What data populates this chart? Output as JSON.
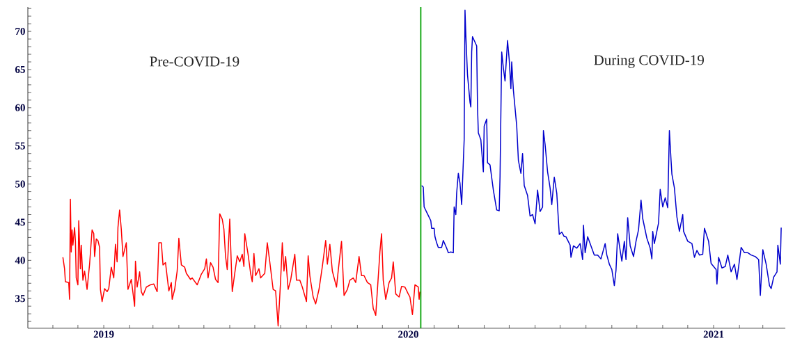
{
  "chart_data": {
    "type": "line",
    "xlim": [
      "2018-10-02",
      "2021-03-28"
    ],
    "ylim": [
      31.1,
      73.2
    ],
    "xticks": [
      {
        "value": "2018-11",
        "label": null
      },
      {
        "value": "2018-12",
        "label": null
      },
      {
        "value": "2019",
        "label": "2019"
      },
      {
        "value": "2019-02",
        "label": null
      },
      {
        "value": "2019-03",
        "label": null
      },
      {
        "value": "2019-04",
        "label": null
      },
      {
        "value": "2019-05",
        "label": null
      },
      {
        "value": "2019-06",
        "label": null
      },
      {
        "value": "2019-07",
        "label": null
      },
      {
        "value": "2019-08",
        "label": null
      },
      {
        "value": "2019-09",
        "label": null
      },
      {
        "value": "2019-10",
        "label": null
      },
      {
        "value": "2019-11",
        "label": null
      },
      {
        "value": "2019-12",
        "label": null
      },
      {
        "value": "2020",
        "label": "2020"
      },
      {
        "value": "2020-02",
        "label": null
      },
      {
        "value": "2020-03",
        "label": null
      },
      {
        "value": "2020-04",
        "label": null
      },
      {
        "value": "2020-05",
        "label": null
      },
      {
        "value": "2020-06",
        "label": null
      },
      {
        "value": "2020-07",
        "label": null
      },
      {
        "value": "2020-08",
        "label": null
      },
      {
        "value": "2020-09",
        "label": null
      },
      {
        "value": "2020-10",
        "label": null
      },
      {
        "value": "2020-11",
        "label": null
      },
      {
        "value": "2020-12",
        "label": null
      },
      {
        "value": "2021",
        "label": "2021"
      },
      {
        "value": "2021-02",
        "label": null
      },
      {
        "value": "2021-03",
        "label": null
      }
    ],
    "yticks": [
      {
        "value": 32,
        "label": null
      },
      {
        "value": 33,
        "label": null
      },
      {
        "value": 34,
        "label": null
      },
      35,
      {
        "value": 36,
        "label": null
      },
      {
        "value": 37,
        "label": null
      },
      {
        "value": 38,
        "label": null
      },
      {
        "value": 39,
        "label": null
      },
      40,
      {
        "value": 41,
        "label": null
      },
      {
        "value": 42,
        "label": null
      },
      {
        "value": 43,
        "label": null
      },
      {
        "value": 44,
        "label": null
      },
      45,
      {
        "value": 46,
        "label": null
      },
      {
        "value": 47,
        "label": null
      },
      {
        "value": 48,
        "label": null
      },
      {
        "value": 49,
        "label": null
      },
      50,
      {
        "value": 51,
        "label": null
      },
      {
        "value": 52,
        "label": null
      },
      {
        "value": 53,
        "label": null
      },
      {
        "value": 54,
        "label": null
      },
      55,
      {
        "value": 56,
        "label": null
      },
      {
        "value": 57,
        "label": null
      },
      {
        "value": 58,
        "label": null
      },
      {
        "value": 59,
        "label": null
      },
      60,
      {
        "value": 61,
        "label": null
      },
      {
        "value": 62,
        "label": null
      },
      {
        "value": 63,
        "label": null
      },
      {
        "value": 64,
        "label": null
      },
      65,
      {
        "value": 66,
        "label": null
      },
      {
        "value": 67,
        "label": null
      },
      {
        "value": 68,
        "label": null
      },
      {
        "value": 69,
        "label": null
      },
      70,
      {
        "value": 71,
        "label": null
      },
      {
        "value": 72,
        "label": null
      },
      {
        "value": 73,
        "label": null
      }
    ],
    "annotations": [
      "Pre-COVID-19",
      "During COVID-19"
    ],
    "ref_lines": [
      {
        "axis": "x",
        "value": "2020-01-16",
        "color": "#00a000"
      }
    ],
    "series": [
      {
        "color": "#ff0000",
        "x": [
          "2018-11-13",
          "2018-11-15",
          "2018-11-16",
          "2018-11-20",
          "2018-11-21",
          "2018-11-22",
          "2018-11-23",
          "2018-11-24",
          "2018-11-25",
          "2018-11-27",
          "2018-11-28",
          "2018-11-29",
          "2018-12-01",
          "2018-12-02",
          "2018-12-04",
          "2018-12-05",
          "2018-12-07",
          "2018-12-09",
          "2018-12-12",
          "2018-12-15",
          "2018-12-18",
          "2018-12-20",
          "2018-12-21",
          "2018-12-23",
          "2018-12-25",
          "2018-12-27",
          "2018-12-28",
          "2018-12-30",
          "2019-01-02",
          "2019-01-05",
          "2019-01-07",
          "2019-01-10",
          "2019-01-13",
          "2019-01-15",
          "2019-01-17",
          "2019-01-18",
          "2019-01-20",
          "2019-01-22",
          "2019-01-24",
          "2019-01-28",
          "2019-01-30",
          "2019-02-03",
          "2019-02-07",
          "2019-02-08",
          "2019-02-10",
          "2019-02-13",
          "2019-02-15",
          "2019-02-17",
          "2019-02-21",
          "2019-02-26",
          "2019-03-02",
          "2019-03-06",
          "2019-03-08",
          "2019-03-11",
          "2019-03-13",
          "2019-03-16",
          "2019-03-20",
          "2019-03-23",
          "2019-03-24",
          "2019-03-27",
          "2019-03-30",
          "2019-04-01",
          "2019-04-04",
          "2019-04-08",
          "2019-04-10",
          "2019-04-15",
          "2019-04-17",
          "2019-04-23",
          "2019-04-28",
          "2019-05-02",
          "2019-05-04",
          "2019-05-06",
          "2019-05-09",
          "2019-05-12",
          "2019-05-15",
          "2019-05-18",
          "2019-05-20",
          "2019-05-23",
          "2019-05-25",
          "2019-05-27",
          "2019-05-29",
          "2019-06-01",
          "2019-06-04",
          "2019-06-07",
          "2019-06-10",
          "2019-06-13",
          "2019-06-16",
          "2019-06-18",
          "2019-06-19",
          "2019-06-23",
          "2019-06-26",
          "2019-06-28",
          "2019-06-30",
          "2019-07-02",
          "2019-07-06",
          "2019-07-08",
          "2019-07-13",
          "2019-07-16",
          "2019-07-19",
          "2019-07-23",
          "2019-07-26",
          "2019-07-29",
          "2019-08-01",
          "2019-08-03",
          "2019-08-05",
          "2019-08-07",
          "2019-08-10",
          "2019-08-13",
          "2019-08-18",
          "2019-08-20",
          "2019-08-24",
          "2019-08-27",
          "2019-09-01",
          "2019-09-03",
          "2019-09-05",
          "2019-09-09",
          "2019-09-12",
          "2019-09-16",
          "2019-09-20",
          "2019-09-24",
          "2019-09-26",
          "2019-09-29",
          "2019-10-02",
          "2019-10-07",
          "2019-10-09",
          "2019-10-13",
          "2019-10-16",
          "2019-10-20",
          "2019-10-23",
          "2019-10-27",
          "2019-10-30",
          "2019-11-03",
          "2019-11-06",
          "2019-11-09",
          "2019-11-13",
          "2019-11-17",
          "2019-11-20",
          "2019-11-23",
          "2019-11-28",
          "2019-11-30",
          "2019-12-02",
          "2019-12-05",
          "2019-12-09",
          "2019-12-12",
          "2019-12-14",
          "2019-12-17",
          "2019-12-21",
          "2019-12-24",
          "2019-12-28",
          "2020-01-01",
          "2020-01-03",
          "2020-01-06",
          "2020-01-09",
          "2020-01-13",
          "2020-01-14",
          "2020-01-15"
        ],
        "values": [
          40.4,
          38.9,
          37.2,
          37.1,
          34.9,
          48.0,
          41.1,
          44.0,
          42.0,
          44.3,
          42.6,
          37.7,
          36.8,
          45.2,
          38.9,
          42.0,
          37.4,
          38.6,
          36.2,
          39.5,
          44.0,
          43.5,
          40.5,
          42.8,
          42.6,
          41.7,
          36.2,
          34.6,
          36.3,
          35.9,
          36.3,
          39.1,
          37.7,
          42.1,
          39.8,
          44.3,
          46.6,
          44.1,
          40.5,
          42.3,
          36.2,
          37.5,
          34.0,
          39.9,
          36.5,
          38.5,
          35.9,
          35.4,
          36.5,
          36.8,
          36.9,
          35.9,
          42.3,
          42.3,
          39.4,
          39.7,
          36.0,
          37.1,
          34.9,
          36.2,
          38.6,
          42.9,
          39.4,
          39.1,
          38.3,
          37.5,
          37.7,
          36.8,
          38.2,
          38.9,
          40.2,
          37.7,
          39.7,
          39.1,
          37.5,
          37.1,
          46.1,
          45.4,
          44.1,
          40.5,
          38.8,
          45.4,
          35.9,
          38.3,
          40.6,
          39.8,
          40.8,
          39.2,
          43.5,
          40.8,
          38.3,
          37.2,
          40.9,
          38.0,
          38.9,
          37.7,
          38.3,
          42.3,
          39.8,
          36.2,
          36.0,
          31.4,
          37.4,
          42.3,
          38.6,
          40.5,
          36.2,
          37.4,
          40.8,
          37.4,
          37.4,
          36.5,
          34.6,
          40.6,
          38.0,
          35.2,
          34.3,
          36.2,
          39.2,
          42.6,
          39.5,
          42.1,
          38.6,
          36.5,
          38.6,
          42.5,
          35.4,
          36.2,
          37.4,
          37.7,
          37.1,
          40.5,
          38.0,
          38.0,
          37.1,
          36.8,
          33.7,
          32.8,
          41.1,
          43.5,
          37.4,
          34.9,
          37.1,
          37.7,
          39.8,
          35.6,
          35.2,
          36.6,
          36.5,
          35.6,
          35.2,
          32.9,
          36.8,
          36.5,
          34.9,
          35.9
        ]
      },
      {
        "color": "#0000cc",
        "x": [
          "2020-01-17",
          "2020-01-19",
          "2020-01-20",
          "2020-01-24",
          "2020-01-28",
          "2020-01-29",
          "2020-02-01",
          "2020-02-02",
          "2020-02-04",
          "2020-02-06",
          "2020-02-10",
          "2020-02-12",
          "2020-02-16",
          "2020-02-18",
          "2020-02-21",
          "2020-02-24",
          "2020-02-25",
          "2020-02-27",
          "2020-02-28",
          "2020-03-01",
          "2020-03-03",
          "2020-03-05",
          "2020-03-06",
          "2020-03-08",
          "2020-03-09",
          "2020-03-10",
          "2020-03-12",
          "2020-03-15",
          "2020-03-16",
          "2020-03-17",
          "2020-03-18",
          "2020-03-23",
          "2020-03-24",
          "2020-03-25",
          "2020-03-28",
          "2020-03-31",
          "2020-04-01",
          "2020-04-04",
          "2020-04-05",
          "2020-04-08",
          "2020-04-12",
          "2020-04-16",
          "2020-04-19",
          "2020-04-20",
          "2020-04-22",
          "2020-04-24",
          "2020-04-26",
          "2020-04-29",
          "2020-05-01",
          "2020-05-03",
          "2020-05-04",
          "2020-05-06",
          "2020-05-10",
          "2020-05-12",
          "2020-05-15",
          "2020-05-17",
          "2020-05-19",
          "2020-05-23",
          "2020-05-26",
          "2020-05-29",
          "2020-06-01",
          "2020-06-04",
          "2020-06-07",
          "2020-06-10",
          "2020-06-11",
          "2020-06-13",
          "2020-06-16",
          "2020-06-19",
          "2020-06-21",
          "2020-06-24",
          "2020-06-27",
          "2020-06-30",
          "2020-07-03",
          "2020-07-06",
          "2020-07-08",
          "2020-07-13",
          "2020-07-14",
          "2020-07-17",
          "2020-07-21",
          "2020-07-25",
          "2020-07-28",
          "2020-07-29",
          "2020-07-31",
          "2020-08-03",
          "2020-08-06",
          "2020-08-11",
          "2020-08-15",
          "2020-08-19",
          "2020-08-24",
          "2020-08-26",
          "2020-08-29",
          "2020-09-01",
          "2020-09-04",
          "2020-09-06",
          "2020-09-08",
          "2020-09-11",
          "2020-09-13",
          "2020-09-16",
          "2020-09-18",
          "2020-09-20",
          "2020-09-23",
          "2020-09-27",
          "2020-09-30",
          "2020-10-03",
          "2020-10-06",
          "2020-10-08",
          "2020-10-13",
          "2020-10-17",
          "2020-10-19",
          "2020-10-20",
          "2020-10-22",
          "2020-10-27",
          "2020-10-29",
          "2020-11-01",
          "2020-11-04",
          "2020-11-07",
          "2020-11-09",
          "2020-11-11",
          "2020-11-12",
          "2020-11-15",
          "2020-11-18",
          "2020-11-21",
          "2020-11-25",
          "2020-11-26",
          "2020-12-01",
          "2020-12-06",
          "2020-12-09",
          "2020-12-12",
          "2020-12-15",
          "2020-12-19",
          "2020-12-21",
          "2020-12-26",
          "2020-12-29",
          "2021-01-04",
          "2021-01-05",
          "2021-01-07",
          "2021-01-11",
          "2021-01-15",
          "2021-01-18",
          "2021-01-22",
          "2021-01-26",
          "2021-01-29",
          "2021-02-03",
          "2021-02-07",
          "2021-02-11",
          "2021-02-15",
          "2021-02-20",
          "2021-02-24",
          "2021-02-26",
          "2021-03-01",
          "2021-03-05",
          "2021-03-09",
          "2021-03-11",
          "2021-03-14",
          "2021-03-18",
          "2021-03-19",
          "2021-03-22",
          "2021-03-23"
        ],
        "values": [
          49.8,
          49.6,
          47.0,
          46.1,
          45.2,
          44.2,
          44.2,
          43.1,
          42.3,
          41.7,
          41.7,
          42.6,
          41.6,
          41.0,
          41.1,
          41.0,
          47.0,
          46.0,
          48.8,
          51.4,
          50.1,
          47.3,
          50.1,
          55.8,
          72.8,
          69.5,
          64.3,
          60.7,
          60.1,
          67.3,
          69.3,
          68.1,
          60.1,
          56.7,
          55.8,
          51.6,
          57.6,
          58.5,
          52.8,
          52.5,
          49.2,
          46.6,
          46.5,
          51.0,
          67.3,
          65.2,
          63.5,
          68.8,
          66.3,
          62.5,
          66.0,
          62.3,
          57.6,
          53.1,
          51.4,
          54.0,
          49.8,
          48.5,
          45.8,
          46.0,
          44.8,
          49.2,
          46.4,
          47.0,
          57.0,
          55.2,
          51.6,
          49.5,
          47.3,
          50.9,
          48.8,
          43.4,
          43.7,
          43.1,
          43.1,
          42.0,
          40.4,
          41.9,
          41.6,
          42.2,
          40.1,
          44.6,
          41.0,
          43.1,
          42.2,
          40.7,
          40.7,
          40.2,
          42.2,
          40.7,
          39.5,
          38.8,
          36.7,
          38.7,
          43.5,
          41.3,
          39.9,
          42.5,
          40.1,
          45.6,
          41.9,
          40.5,
          42.5,
          44.0,
          47.9,
          45.5,
          42.9,
          41.6,
          40.2,
          43.8,
          42.2,
          44.9,
          49.3,
          47.0,
          48.2,
          46.9,
          57.0,
          53.1,
          51.3,
          49.5,
          45.7,
          43.8,
          46.0,
          43.8,
          42.5,
          42.2,
          40.4,
          41.3,
          40.7,
          40.8,
          44.2,
          42.5,
          39.6,
          38.8,
          36.9,
          40.4,
          39.0,
          39.2,
          40.7,
          38.5,
          39.5,
          37.5,
          41.7,
          41.0,
          41.0,
          40.7,
          40.5,
          40.1,
          35.4,
          41.4,
          39.5,
          36.7,
          36.3,
          37.8,
          38.5,
          42.0,
          39.5,
          44.3
        ]
      }
    ]
  }
}
